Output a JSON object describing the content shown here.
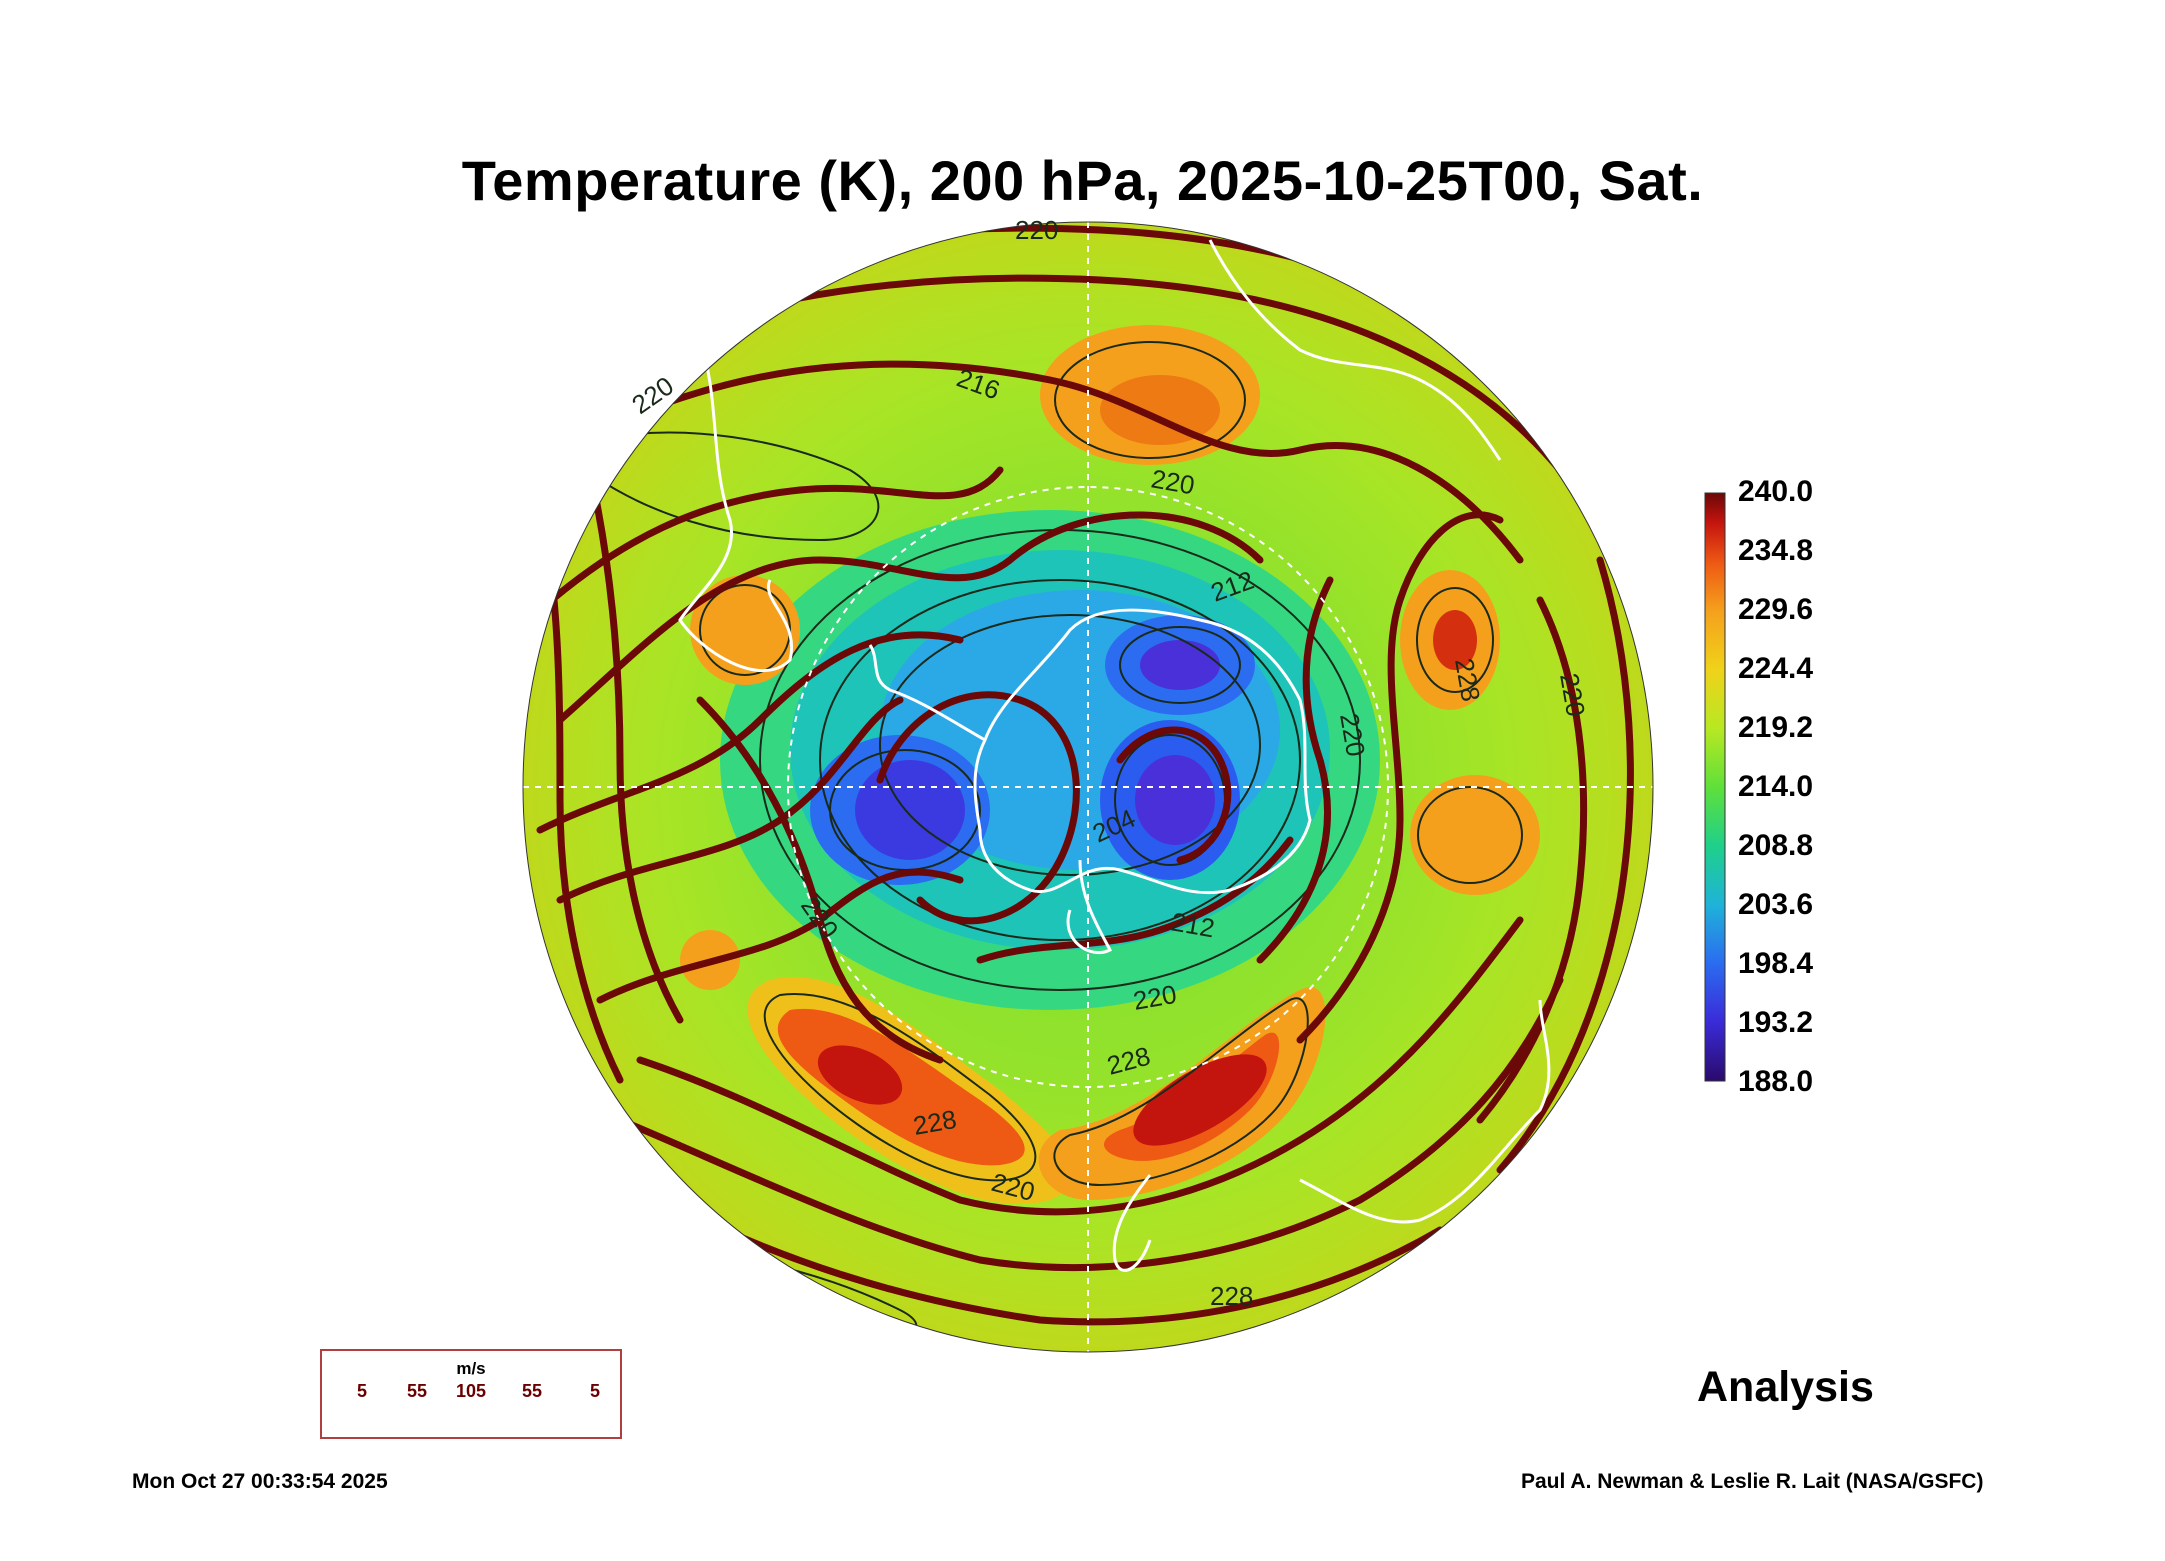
{
  "title": "Temperature (K), 200 hPa, 2025-10-25T00, Sat.",
  "colorbar": {
    "labels": [
      "240.0",
      "234.8",
      "229.6",
      "224.4",
      "219.2",
      "214.0",
      "208.8",
      "203.6",
      "198.4",
      "193.2",
      "188.0"
    ],
    "min": 188.0,
    "max": 240.0,
    "colors": [
      "#2a0a6b",
      "#3a2bd8",
      "#2b6cf0",
      "#1fb3d8",
      "#1fd08a",
      "#5fe03a",
      "#b8e822",
      "#f0d21a",
      "#f5a01c",
      "#ee5a14",
      "#c4140e",
      "#6a0808"
    ]
  },
  "contour_labels": {
    "temperature": [
      "220",
      "216",
      "220",
      "212",
      "204",
      "220",
      "212",
      "228",
      "228",
      "220",
      "228",
      "228",
      "220",
      "220",
      "220",
      "220"
    ]
  },
  "wind_legend": {
    "unit": "m/s",
    "values": [
      "5",
      "55",
      "105",
      "55",
      "5"
    ]
  },
  "product": "Analysis",
  "timestamp": "Mon Oct 27 00:33:54 2025",
  "credit": "Paul A. Newman & Leslie R. Lait (NASA/GSFC)",
  "colors": {
    "streamline": "#6b0808",
    "coastline": "#ffffff",
    "contour": "#1a2a1a"
  }
}
